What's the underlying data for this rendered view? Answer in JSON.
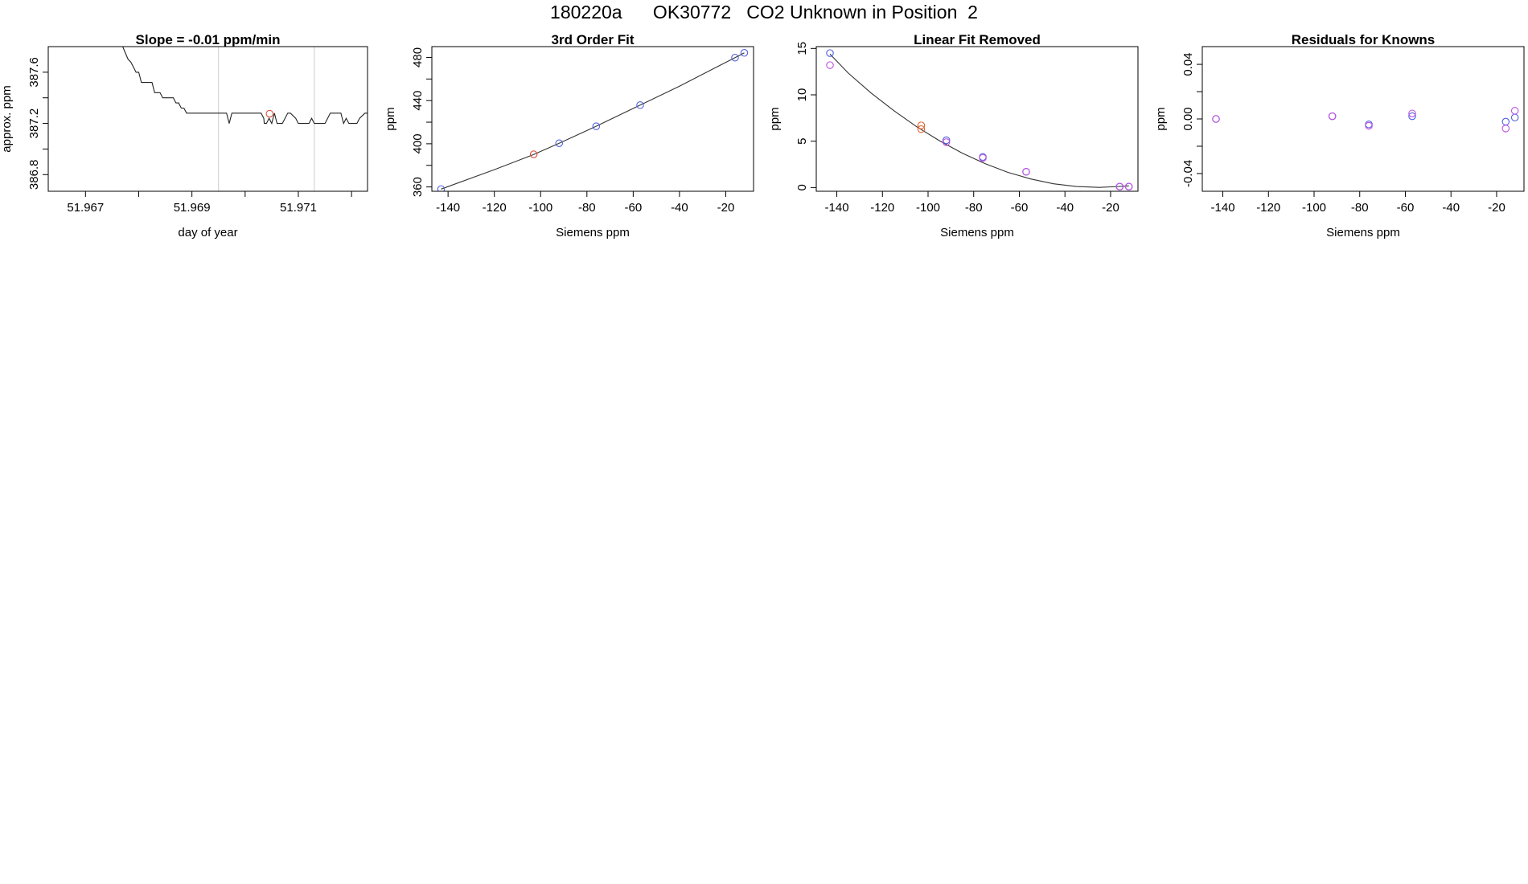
{
  "page_title": "180220a      OK30772   CO2 Unknown in Position  2",
  "chart_data": [
    {
      "type": "line",
      "title": "Slope =  -0.01  ppm/min",
      "xlabel": "day of year",
      "ylabel": "approx. ppm",
      "xlim": [
        51.9663,
        51.9723
      ],
      "ylim": [
        386.67,
        387.8
      ],
      "xticks": [
        51.967,
        51.969,
        51.971
      ],
      "xtick_labels": [
        "51.967",
        "51.969",
        "51.971"
      ],
      "xticks_unlabeled": [
        51.968,
        51.97,
        51.972
      ],
      "yticks": [
        386.8,
        387.2,
        387.6
      ],
      "ytick_labels": [
        "386.8",
        "387.2",
        "387.6"
      ],
      "yticks_unlabeled": [
        387.0,
        387.4
      ],
      "vlines": [
        51.9695,
        51.9713
      ],
      "vline_color": "#cccccc",
      "highlight_point": {
        "x": 51.97046,
        "y": 387.276,
        "color": "#e05040"
      },
      "series": [
        {
          "color": "#222222",
          "points": [
            [
              51.9677,
              387.9
            ],
            [
              51.9677,
              387.8
            ],
            [
              51.96775,
              387.75
            ],
            [
              51.9678,
              387.7
            ],
            [
              51.96785,
              387.68
            ],
            [
              51.9679,
              387.64
            ],
            [
              51.96795,
              387.6
            ],
            [
              51.968,
              387.6
            ],
            [
              51.96805,
              387.52
            ],
            [
              51.9681,
              387.52
            ],
            [
              51.96825,
              387.52
            ],
            [
              51.9683,
              387.44
            ],
            [
              51.9684,
              387.44
            ],
            [
              51.96845,
              387.4
            ],
            [
              51.96865,
              387.4
            ],
            [
              51.9687,
              387.36
            ],
            [
              51.96875,
              387.36
            ],
            [
              51.9688,
              387.32
            ],
            [
              51.96885,
              387.32
            ],
            [
              51.9689,
              387.28
            ],
            [
              51.9694,
              387.28
            ],
            [
              51.9695,
              387.28
            ],
            [
              51.96965,
              387.28
            ],
            [
              51.9697,
              387.2
            ],
            [
              51.96975,
              387.28
            ],
            [
              51.9702,
              387.28
            ],
            [
              51.9703,
              387.28
            ],
            [
              51.97035,
              387.24
            ],
            [
              51.97036,
              387.2
            ],
            [
              51.9704,
              387.2
            ],
            [
              51.97045,
              387.24
            ],
            [
              51.9705,
              387.2
            ],
            [
              51.97055,
              387.28
            ],
            [
              51.9706,
              387.2
            ],
            [
              51.9707,
              387.2
            ],
            [
              51.9708,
              387.28
            ],
            [
              51.97085,
              387.28
            ],
            [
              51.97095,
              387.24
            ],
            [
              51.971,
              387.2
            ],
            [
              51.9712,
              387.2
            ],
            [
              51.97125,
              387.24
            ],
            [
              51.9713,
              387.2
            ],
            [
              51.9715,
              387.2
            ],
            [
              51.97155,
              387.24
            ],
            [
              51.9716,
              387.28
            ],
            [
              51.9718,
              387.28
            ],
            [
              51.97185,
              387.2
            ],
            [
              51.9719,
              387.24
            ],
            [
              51.97195,
              387.2
            ],
            [
              51.9721,
              387.2
            ],
            [
              51.97215,
              387.24
            ],
            [
              51.97225,
              387.28
            ],
            [
              51.9725,
              387.28
            ],
            [
              51.97255,
              387.4
            ],
            [
              51.9726,
              387.9
            ]
          ]
        }
      ]
    },
    {
      "type": "scatter",
      "title": "3rd Order Fit",
      "xlabel": "Siemens ppm",
      "ylabel": "ppm",
      "xlim": [
        -147,
        -8
      ],
      "ylim": [
        356,
        490
      ],
      "xticks": [
        -140,
        -120,
        -100,
        -80,
        -60,
        -40,
        -20
      ],
      "xtick_labels": [
        "-140",
        "-120",
        "-100",
        "-80",
        "-60",
        "-40",
        "-20"
      ],
      "yticks": [
        360,
        400,
        440,
        480
      ],
      "ytick_labels": [
        "360",
        "400",
        "440",
        "480"
      ],
      "yticks_unlabeled": [
        380,
        420,
        460
      ],
      "fit_curve": {
        "color": "#333333",
        "points": [
          [
            -143,
            358
          ],
          [
            -120,
            376
          ],
          [
            -103,
            390
          ],
          [
            -92,
            400.5
          ],
          [
            -76,
            416.2
          ],
          [
            -57,
            435.8
          ],
          [
            -40,
            453.4
          ],
          [
            -16,
            479.8
          ],
          [
            -12,
            484.2
          ]
        ]
      },
      "series": [
        {
          "color": "#5060e0",
          "x": [
            -143,
            -92,
            -76,
            -57,
            -16,
            -12
          ],
          "y": [
            358,
            400.5,
            416.2,
            435.8,
            479.8,
            484.2
          ]
        },
        {
          "color": "#e04838",
          "x": [
            -103
          ],
          "y": [
            390.2
          ]
        }
      ]
    },
    {
      "type": "scatter",
      "title": "Linear Fit Removed",
      "xlabel": "Siemens ppm",
      "ylabel": "ppm",
      "xlim": [
        -149,
        -8
      ],
      "ylim": [
        -0.4,
        15.2
      ],
      "xticks": [
        -140,
        -120,
        -100,
        -80,
        -60,
        -40,
        -20
      ],
      "xtick_labels": [
        "-140",
        "-120",
        "-100",
        "-80",
        "-60",
        "-40",
        "-20"
      ],
      "yticks": [
        0,
        5,
        10,
        15
      ],
      "ytick_labels": [
        "0",
        "5",
        "10",
        "15"
      ],
      "fit_curve": {
        "color": "#333333",
        "points": [
          [
            -143,
            14.4
          ],
          [
            -135,
            12.35
          ],
          [
            -125,
            10.2
          ],
          [
            -115,
            8.29
          ],
          [
            -105,
            6.56
          ],
          [
            -95,
            5.05
          ],
          [
            -85,
            3.71
          ],
          [
            -75,
            2.58
          ],
          [
            -65,
            1.64
          ],
          [
            -55,
            0.93
          ],
          [
            -45,
            0.41
          ],
          [
            -35,
            0.11
          ],
          [
            -25,
            0.02
          ],
          [
            -16,
            0.12
          ],
          [
            -12,
            0.18
          ]
        ]
      },
      "series": [
        {
          "color": "#5060e0",
          "x": [
            -143,
            -92,
            -76,
            -57,
            -16,
            -12
          ],
          "y": [
            14.5,
            5.1,
            3.3,
            1.7,
            0.1,
            0.1
          ]
        },
        {
          "color": "#c050e0",
          "x": [
            -143,
            -92,
            -76,
            -57,
            -16,
            -12
          ],
          "y": [
            13.2,
            4.9,
            3.2,
            1.7,
            0.1,
            0.1
          ]
        },
        {
          "color": "#e0602a",
          "x": [
            -103,
            -103
          ],
          "y": [
            6.7,
            6.3
          ]
        }
      ]
    },
    {
      "type": "scatter",
      "title": "Residuals for Knowns",
      "xlabel": "Siemens ppm",
      "ylabel": "ppm",
      "xlim": [
        -149,
        -8
      ],
      "ylim": [
        -0.053,
        0.053
      ],
      "xticks": [
        -140,
        -120,
        -100,
        -80,
        -60,
        -40,
        -20
      ],
      "xtick_labels": [
        "-140",
        "-120",
        "-100",
        "-80",
        "-60",
        "-40",
        "-20"
      ],
      "yticks": [
        -0.04,
        0.0,
        0.04
      ],
      "ytick_labels": [
        "-0.04",
        "0.00",
        "0.04"
      ],
      "yticks_unlabeled": [
        -0.02,
        0.02
      ],
      "series": [
        {
          "color": "#5060e0",
          "x": [
            -143,
            -92,
            -76,
            -57,
            -16,
            -12
          ],
          "y": [
            0.0,
            0.002,
            -0.004,
            0.002,
            -0.002,
            0.001
          ]
        },
        {
          "color": "#c050e0",
          "x": [
            -143,
            -92,
            -76,
            -57,
            -16,
            -12
          ],
          "y": [
            0.0,
            0.002,
            -0.005,
            0.004,
            -0.007,
            0.006
          ]
        }
      ]
    }
  ]
}
